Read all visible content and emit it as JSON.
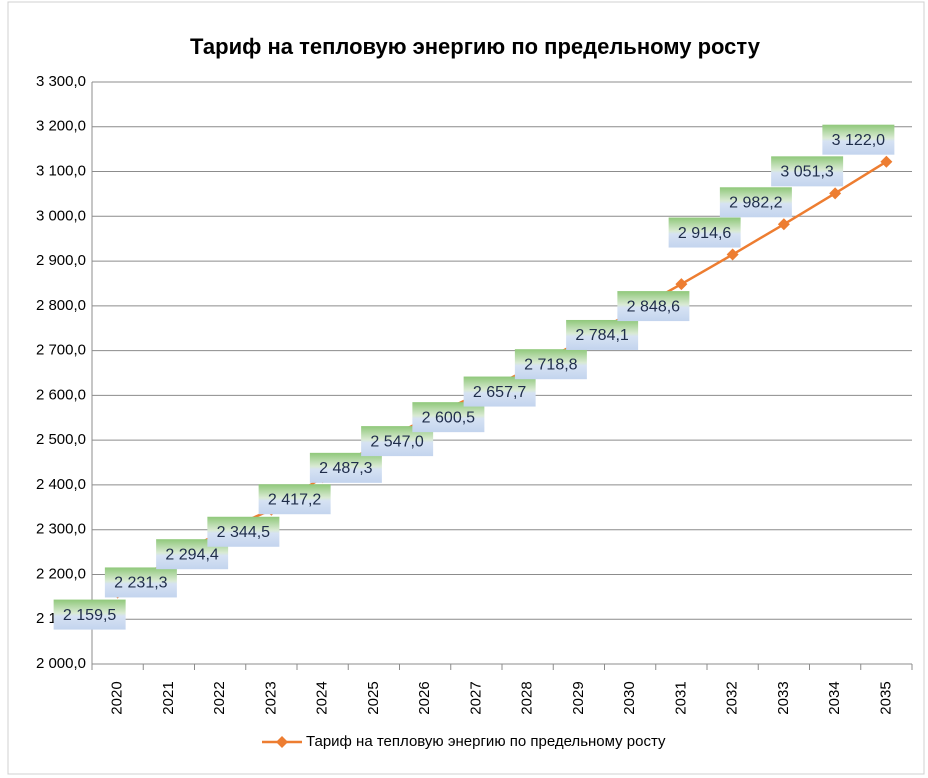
{
  "chart_data": {
    "type": "line",
    "title": "Тариф на тепловую энергию по предельному росту",
    "categories": [
      "2020",
      "2021",
      "2022",
      "2023",
      "2024",
      "2025",
      "2026",
      "2027",
      "2028",
      "2029",
      "2030",
      "2031",
      "2032",
      "2033",
      "2034",
      "2035"
    ],
    "series": [
      {
        "name": "Тариф на тепловую энергию по предельному росту",
        "color": "#ed7d31",
        "values": [
          2159.5,
          2231.3,
          2294.4,
          2344.5,
          2417.2,
          2487.3,
          2547.0,
          2600.5,
          2657.7,
          2718.8,
          2784.1,
          2848.6,
          2914.6,
          2982.2,
          3051.3,
          3122.0
        ],
        "value_labels": [
          "2 159,5",
          "2 231,3",
          "2 294,4",
          "2 344,5",
          "2 417,2",
          "2 487,3",
          "2 547,0",
          "2 600,5",
          "2 657,7",
          "2 718,8",
          "2 784,1",
          "2 848,6",
          "2 914,6",
          "2 982,2",
          "3 051,3",
          "3 122,0"
        ]
      }
    ],
    "ylim": [
      2000,
      3300
    ],
    "yticks": [
      {
        "value": 2000,
        "label": "2 000,0"
      },
      {
        "value": 2100,
        "label": "2 100,0"
      },
      {
        "value": 2200,
        "label": "2 200,0"
      },
      {
        "value": 2300,
        "label": "2 300,0"
      },
      {
        "value": 2400,
        "label": "2 400,0"
      },
      {
        "value": 2500,
        "label": "2 500,0"
      },
      {
        "value": 2600,
        "label": "2 600,0"
      },
      {
        "value": 2700,
        "label": "2 700,0"
      },
      {
        "value": 2800,
        "label": "2 800,0"
      },
      {
        "value": 2900,
        "label": "2 900,0"
      },
      {
        "value": 3000,
        "label": "3 000,0"
      },
      {
        "value": 3100,
        "label": "3 100,0"
      },
      {
        "value": 3200,
        "label": "3 200,0"
      },
      {
        "value": 3300,
        "label": "3 300,0"
      }
    ],
    "grid": true,
    "legend": "bottom"
  }
}
